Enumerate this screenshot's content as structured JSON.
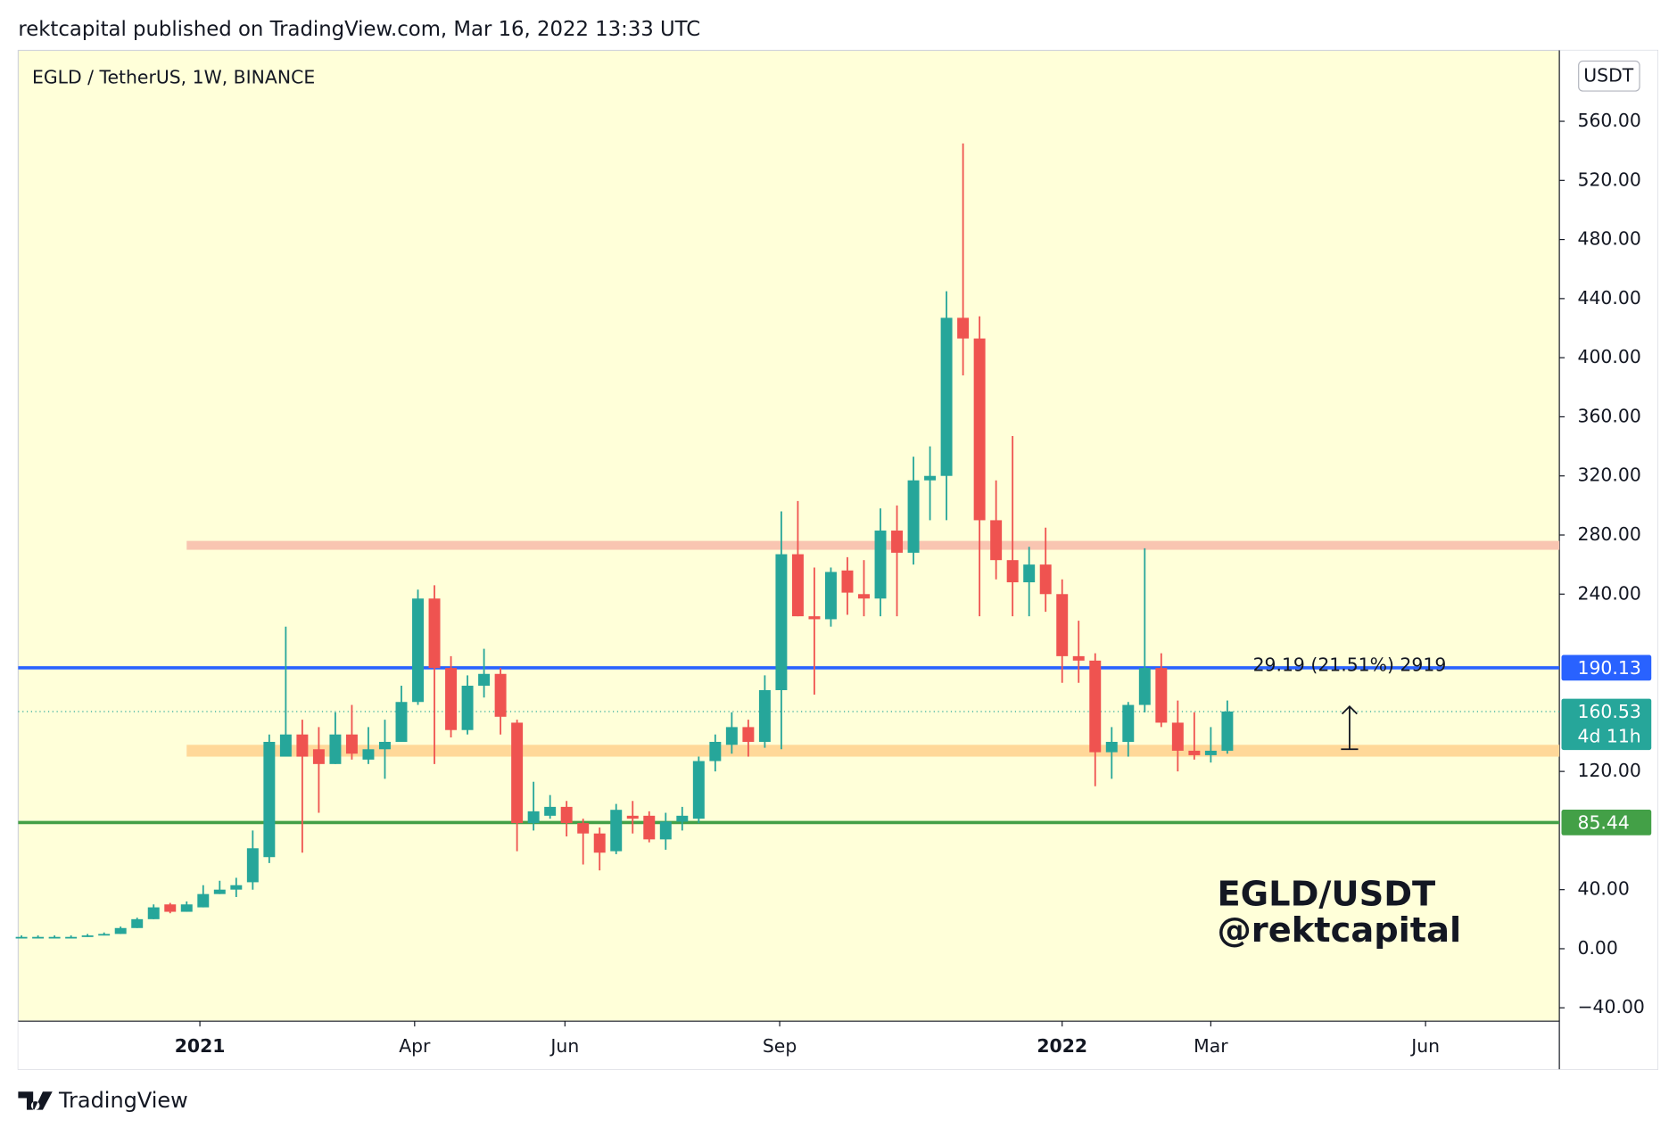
{
  "header": "rektcapital published on TradingView.com, Mar 16, 2022 13:33 UTC",
  "footer": {
    "brand": "TradingView"
  },
  "chart_data": {
    "type": "candlestick",
    "symbol": "EGLD / TetherUS, 1W, BINANCE",
    "currency": "USDT",
    "watermark": [
      "EGLD/USDT",
      "@rektcapital"
    ],
    "up_color": "#26a69a",
    "down_color": "#ef5350",
    "x": [
      0,
      1,
      2,
      3,
      4,
      5,
      6,
      7,
      8,
      9,
      10,
      11,
      12,
      13,
      14,
      15,
      16,
      17,
      18,
      19,
      20,
      21,
      22,
      23,
      24,
      25,
      26,
      27,
      28,
      29,
      30,
      31,
      32,
      33,
      34,
      35,
      36,
      37,
      38,
      39,
      40,
      41,
      42,
      43,
      44,
      45,
      46,
      47,
      48,
      49,
      50,
      51,
      52,
      53,
      54,
      55,
      56,
      57,
      58,
      59,
      60,
      61,
      62,
      63,
      64,
      65,
      66,
      67,
      68,
      69,
      70,
      71,
      72,
      73
    ],
    "open": [
      8,
      8,
      8,
      8,
      8,
      9,
      10,
      14,
      20,
      30,
      25,
      28,
      37,
      40,
      45,
      62,
      130,
      145,
      135,
      125,
      145,
      128,
      135,
      140,
      167,
      237,
      190,
      148,
      178,
      186,
      153,
      85,
      90,
      96,
      85,
      78,
      66,
      90,
      90,
      74,
      86,
      88,
      127,
      138,
      150,
      140,
      175,
      267,
      225,
      223,
      256,
      240,
      237,
      283,
      268,
      317,
      320,
      427,
      413,
      290,
      263,
      248,
      260,
      240,
      198,
      195,
      133,
      140,
      165,
      190,
      153,
      134,
      131,
      134
    ],
    "high": [
      9,
      9,
      9,
      9,
      10,
      11,
      15,
      21,
      30,
      31,
      32,
      43,
      46,
      48,
      80,
      145,
      218,
      155,
      150,
      160,
      165,
      150,
      155,
      178,
      243,
      246,
      198,
      185,
      203,
      190,
      155,
      113,
      104,
      100,
      88,
      82,
      98,
      100,
      93,
      92,
      96,
      130,
      145,
      160,
      155,
      185,
      296,
      303,
      258,
      258,
      265,
      263,
      298,
      300,
      333,
      340,
      445,
      545,
      428,
      317,
      347,
      272,
      285,
      250,
      222,
      200,
      150,
      167,
      271,
      200,
      168,
      160,
      150,
      168
    ],
    "low": [
      7,
      7,
      7,
      7,
      8,
      9,
      10,
      14,
      20,
      24,
      25,
      28,
      37,
      35,
      40,
      58,
      130,
      65,
      92,
      125,
      128,
      125,
      115,
      140,
      165,
      125,
      143,
      145,
      170,
      145,
      66,
      80,
      88,
      76,
      57,
      53,
      64,
      78,
      72,
      67,
      80,
      85,
      120,
      132,
      130,
      136,
      135,
      225,
      172,
      218,
      226,
      225,
      225,
      225,
      260,
      290,
      290,
      388,
      225,
      250,
      225,
      225,
      228,
      180,
      180,
      110,
      115,
      130,
      160,
      150,
      120,
      128,
      126,
      132
    ],
    "close": [
      8,
      8,
      8,
      8,
      9,
      10,
      14,
      20,
      28,
      25,
      30,
      37,
      40,
      43,
      68,
      140,
      145,
      130,
      125,
      145,
      132,
      135,
      140,
      167,
      237,
      190,
      148,
      178,
      186,
      157,
      85,
      93,
      96,
      85,
      78,
      65,
      94,
      88,
      74,
      86,
      90,
      127,
      140,
      150,
      140,
      175,
      267,
      225,
      223,
      255,
      241,
      237,
      283,
      268,
      317,
      320,
      427,
      413,
      290,
      263,
      248,
      260,
      240,
      198,
      195,
      133,
      140,
      165,
      190,
      153,
      134,
      131,
      134,
      160.53
    ],
    "xlim": [
      -0.2,
      93.1
    ],
    "xticks": [
      {
        "value": 10.8,
        "label": "2021"
      },
      {
        "value": 23.8,
        "label": "Apr"
      },
      {
        "value": 32.9,
        "label": "Jun"
      },
      {
        "value": 45.9,
        "label": "Sep"
      },
      {
        "value": 63.0,
        "label": "2022"
      },
      {
        "value": 72.0,
        "label": "Mar"
      },
      {
        "value": 85.0,
        "label": "Jun"
      }
    ],
    "ylim": [
      -49,
      608
    ],
    "yticks": [
      {
        "value": -40,
        "label": "−40.00"
      },
      {
        "value": 0,
        "label": "0.00"
      },
      {
        "value": 40,
        "label": "40.00"
      },
      {
        "value": 120,
        "label": "120.00"
      },
      {
        "value": 240,
        "label": "240.00"
      },
      {
        "value": 280,
        "label": "280.00"
      },
      {
        "value": 320,
        "label": "320.00"
      },
      {
        "value": 360,
        "label": "360.00"
      },
      {
        "value": 400,
        "label": "400.00"
      },
      {
        "value": 440,
        "label": "440.00"
      },
      {
        "value": 480,
        "label": "480.00"
      },
      {
        "value": 520,
        "label": "520.00"
      },
      {
        "value": 560,
        "label": "560.00"
      }
    ],
    "bands": [
      {
        "range": [
          270,
          276
        ],
        "start": 10.0,
        "color": "#f9c5b1"
      },
      {
        "range": [
          130,
          138
        ],
        "start": 10.0,
        "color": "#ffd899"
      }
    ],
    "hlines": [
      {
        "value": 190.13,
        "color": "#2962ff"
      },
      {
        "value": 85.44,
        "color": "#43a047"
      }
    ],
    "last": {
      "value": 160.53,
      "countdown": "4d 11h",
      "color": "#26a69a"
    },
    "measure": {
      "from": 135,
      "to": 164,
      "x": 80.4,
      "label": "29.19 (21.51%) 2919"
    }
  }
}
